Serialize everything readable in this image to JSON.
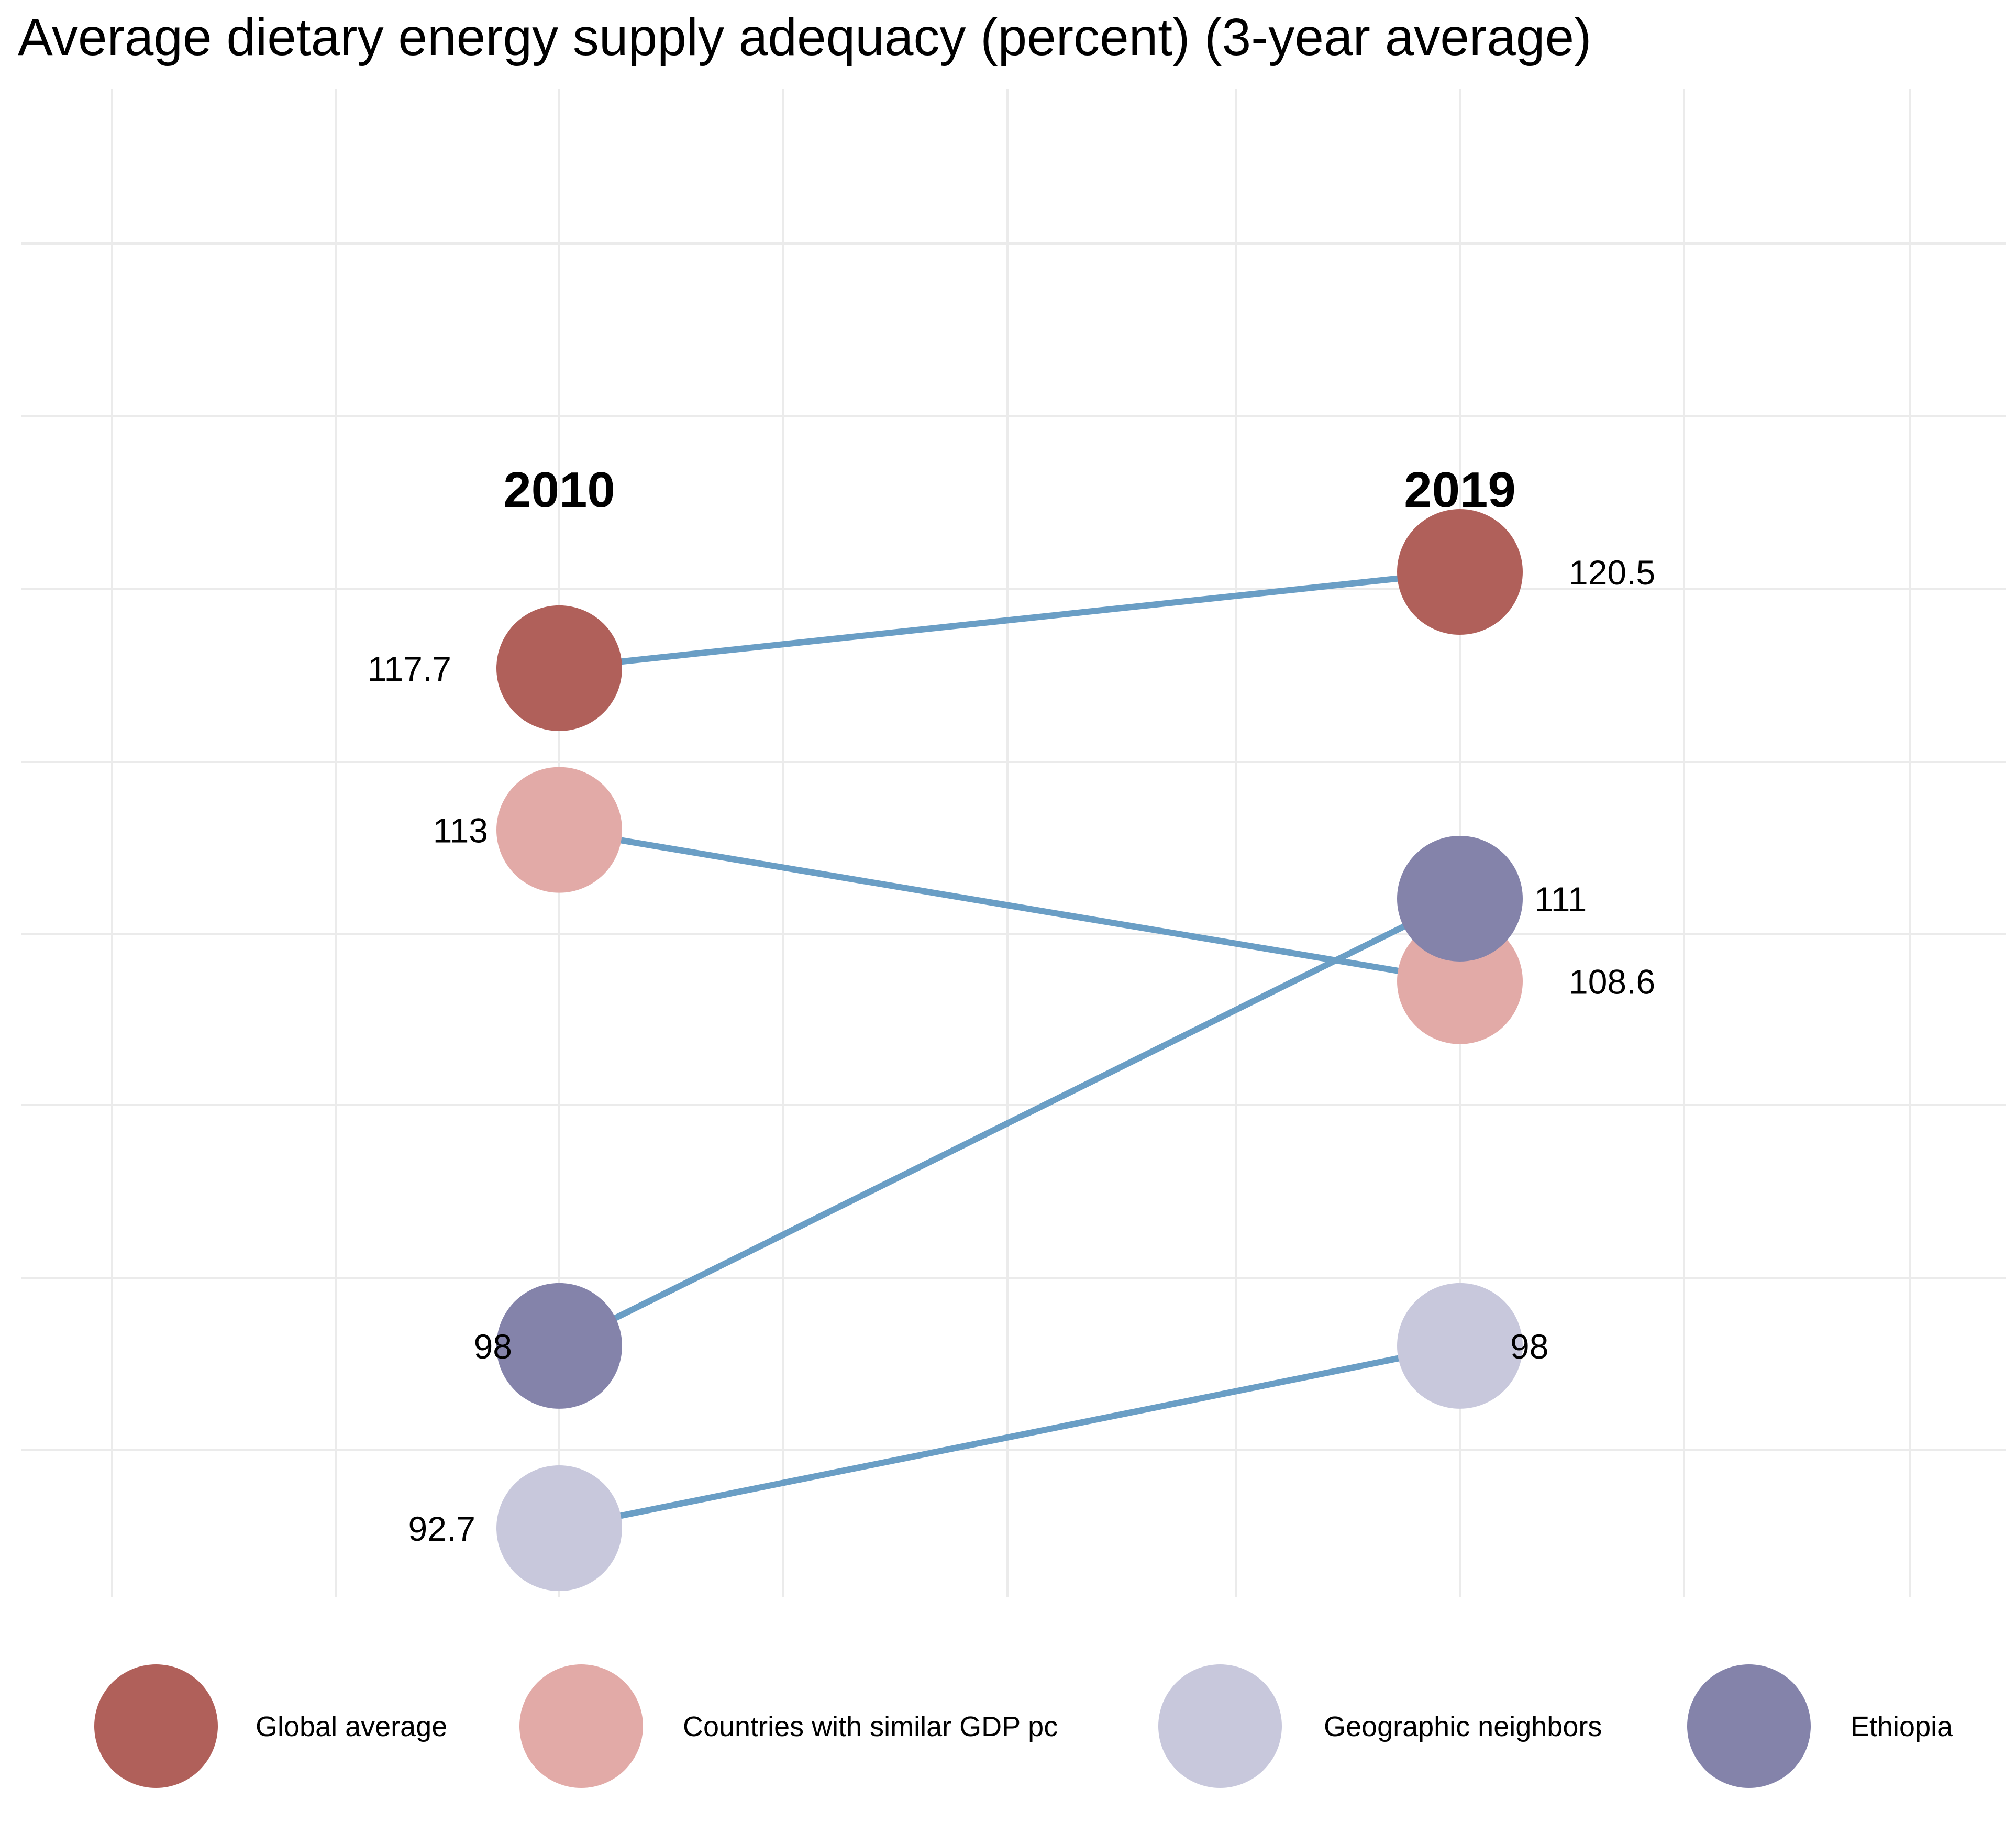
{
  "chart_data": {
    "type": "slope",
    "title": "Average dietary energy supply adequacy (percent) (3-year average)",
    "x": [
      "2010",
      "2019"
    ],
    "series": [
      {
        "name": "Global average",
        "color": "#b0605a",
        "values": [
          117.7,
          120.5
        ],
        "labels": [
          "117.7",
          "120.5"
        ]
      },
      {
        "name": "Countries with similar GDP pc",
        "color": "#e2aaa7",
        "values": [
          113,
          108.6
        ],
        "labels": [
          "113",
          "108.6"
        ]
      },
      {
        "name": "Geographic neighbors",
        "color": "#c8c8dc",
        "values": [
          92.7,
          98
        ],
        "labels": [
          "92.7",
          "98"
        ]
      },
      {
        "name": "Ethiopia",
        "color": "#8483aa",
        "values": [
          98,
          111
        ],
        "labels": [
          "98",
          "111"
        ]
      }
    ],
    "line_color": "#6a9ec5",
    "grid": true,
    "legend_position": "bottom"
  }
}
